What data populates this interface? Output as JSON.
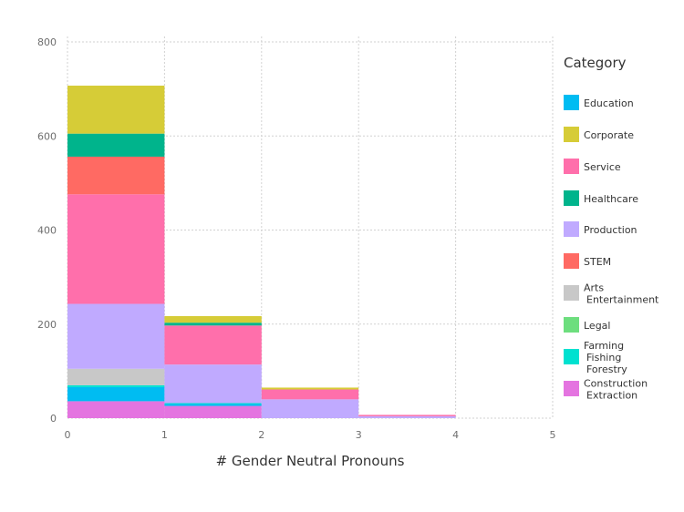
{
  "chart_data": {
    "type": "bar",
    "stacked": true,
    "bins": [
      "0-1",
      "1-2",
      "2-3",
      "3-4",
      "4-5"
    ],
    "xlabel": "# Gender Neutral Pronouns",
    "ylabel": "",
    "xlim": [
      0,
      5
    ],
    "ylim": [
      0,
      800
    ],
    "x_ticks": [
      "0",
      "1",
      "2",
      "3",
      "4",
      "5"
    ],
    "y_ticks": [
      "0",
      "200",
      "400",
      "600",
      "800"
    ],
    "grid": true,
    "legend_title": "Category",
    "legend_position": "right",
    "series": [
      {
        "name": "Construction Extraction",
        "lines": [
          "Construction",
          "Extraction"
        ],
        "color": "#e474e0",
        "values": [
          36,
          26,
          0,
          0,
          0
        ]
      },
      {
        "name": "Farming Fishing Forestry",
        "lines": [
          "Farming",
          "Fishing",
          "Forestry"
        ],
        "color": "#00e1d0",
        "values": [
          4,
          2,
          0,
          0,
          0
        ]
      },
      {
        "name": "Legal",
        "lines": [
          "Legal"
        ],
        "color": "#6dde7e",
        "values": [
          0,
          0,
          0,
          0,
          0
        ]
      },
      {
        "name": "Arts Entertainment",
        "lines": [
          "Arts",
          "Entertainment"
        ],
        "color": "#c8c8c8",
        "values": [
          35,
          0,
          0,
          0,
          0
        ]
      },
      {
        "name": "STEM",
        "lines": [
          "STEM"
        ],
        "color": "#ff6a63",
        "values": [
          80,
          0,
          0,
          0,
          0
        ]
      },
      {
        "name": "Production",
        "lines": [
          "Production"
        ],
        "color": "#c0aaff",
        "values": [
          138,
          82,
          40,
          4,
          0
        ]
      },
      {
        "name": "Healthcare",
        "lines": [
          "Healthcare"
        ],
        "color": "#00b48c",
        "values": [
          49,
          6,
          0,
          0,
          0
        ]
      },
      {
        "name": "Service",
        "lines": [
          "Service"
        ],
        "color": "#ff6fab",
        "values": [
          233,
          83,
          21,
          3,
          0
        ]
      },
      {
        "name": "Corporate",
        "lines": [
          "Corporate"
        ],
        "color": "#d6cc37",
        "values": [
          102,
          14,
          4,
          0,
          0
        ]
      },
      {
        "name": "Education",
        "lines": [
          "Education"
        ],
        "color": "#00bcf2",
        "values": [
          30,
          4,
          0,
          0,
          0
        ]
      }
    ],
    "stack_order_bottom_to_top": [
      "Construction Extraction",
      "Education",
      "Farming Fishing Forestry",
      "Arts Entertainment",
      "Production",
      "Service",
      "Legal",
      "STEM",
      "Healthcare",
      "Corporate"
    ],
    "legend_order": [
      "Education",
      "Corporate",
      "Service",
      "Healthcare",
      "Production",
      "STEM",
      "Arts Entertainment",
      "Legal",
      "Farming Fishing Forestry",
      "Construction Extraction"
    ]
  }
}
